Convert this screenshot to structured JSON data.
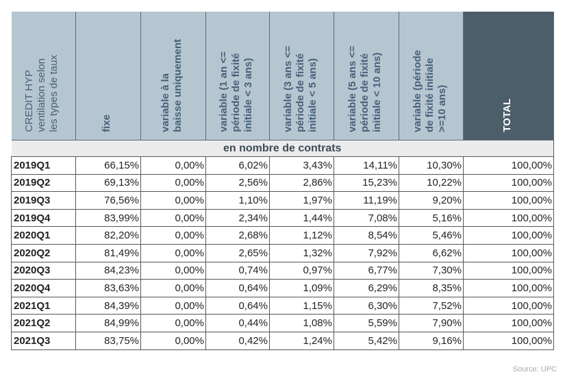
{
  "headers": [
    "CREDIT HYP\nventilation selon\nles types de taux",
    "fixe",
    "variable à la\nbaisse uniquement",
    "variable (1 an <=\npériode de fixité\ninitiale < 3 ans)",
    "variable (3 ans <=\npériode de fixité\ninitiale < 5 ans)",
    "variable (5 ans  <=\npériode de fixité\ninitiale < 10 ans)",
    "variable (période\nde fixité initiale\n>=10 ans)",
    "TOTAL"
  ],
  "band": "en nombre de contrats",
  "rows": [
    [
      "2019Q1",
      "66,15%",
      "0,00%",
      "6,02%",
      "3,43%",
      "14,11%",
      "10,30%",
      "100,00%"
    ],
    [
      "2019Q2",
      "69,13%",
      "0,00%",
      "2,56%",
      "2,86%",
      "15,23%",
      "10,22%",
      "100,00%"
    ],
    [
      "2019Q3",
      "76,56%",
      "0,00%",
      "1,10%",
      "1,97%",
      "11,19%",
      "9,20%",
      "100,00%"
    ],
    [
      "2019Q4",
      "83,99%",
      "0,00%",
      "2,34%",
      "1,44%",
      "7,08%",
      "5,16%",
      "100,00%"
    ],
    [
      "2020Q1",
      "82,20%",
      "0,00%",
      "2,68%",
      "1,12%",
      "8,54%",
      "5,46%",
      "100,00%"
    ],
    [
      "2020Q2",
      "81,49%",
      "0,00%",
      "2,65%",
      "1,32%",
      "7,92%",
      "6,62%",
      "100,00%"
    ],
    [
      "2020Q3",
      "84,23%",
      "0,00%",
      "0,74%",
      "0,97%",
      "6,77%",
      "7,30%",
      "100,00%"
    ],
    [
      "2020Q4",
      "83,63%",
      "0,00%",
      "0,64%",
      "1,09%",
      "6,29%",
      "8,35%",
      "100,00%"
    ],
    [
      "2021Q1",
      "84,39%",
      "0,00%",
      "0,64%",
      "1,15%",
      "6,30%",
      "7,52%",
      "100,00%"
    ],
    [
      "2021Q2",
      "84,99%",
      "0,00%",
      "0,44%",
      "1,08%",
      "5,59%",
      "7,90%",
      "100,00%"
    ],
    [
      "2021Q3",
      "83,75%",
      "0,00%",
      "0,42%",
      "1,24%",
      "5,42%",
      "9,16%",
      "100,00%"
    ]
  ],
  "source": "Source: UPC"
}
